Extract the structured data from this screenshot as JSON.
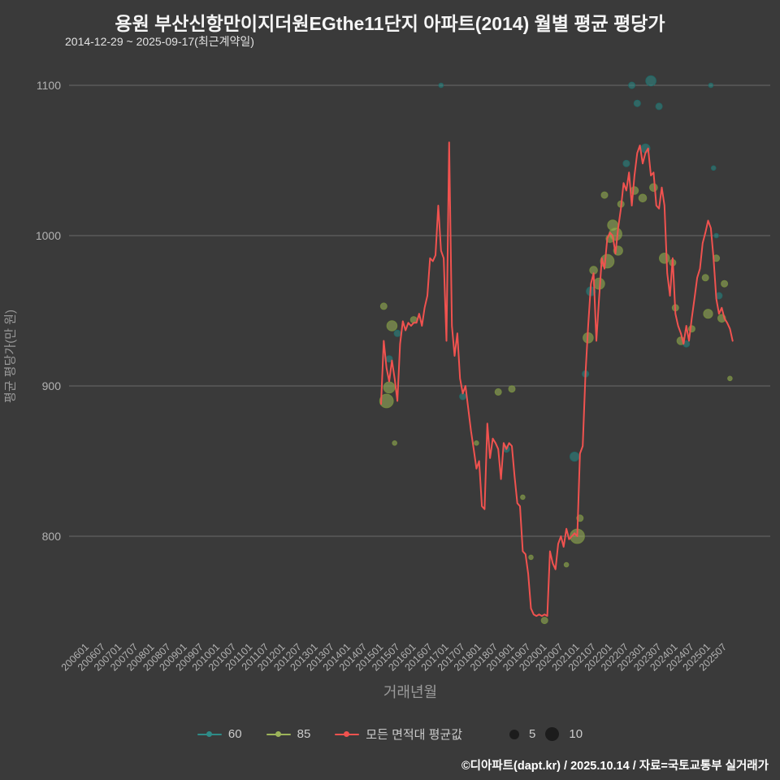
{
  "header": {
    "title": "용원 부산신항만이지더원EGthe11단지 아파트(2014) 월별 평균 평당가",
    "subtitle": "2014-12-29 ~ 2025-09-17(최근계약일)"
  },
  "footer": {
    "credit": "©디아파트(dapt.kr) / 2025.10.14 / 자료=국토교통부 실거래가"
  },
  "legend": {
    "items": [
      {
        "label": "60",
        "color": "#2e8b87"
      },
      {
        "label": "85",
        "color": "#9cb45a"
      },
      {
        "label": "모든 면적대 평균값",
        "color": "#f0524f"
      }
    ],
    "sizes": [
      {
        "label": "5"
      },
      {
        "label": "10"
      }
    ],
    "size_dot_color": "#1c1c1c"
  },
  "chart_data": {
    "type": "line",
    "title": "용원 부산신항만이지더원EGthe11단지 아파트(2014) 월별 평균 평당가",
    "xlabel": "거래년월",
    "ylabel": "평균 평당가(만 원)",
    "ylim": [
      730,
      1110
    ],
    "yticks": [
      800,
      900,
      1000,
      1100
    ],
    "xticks": [
      "200601",
      "200607",
      "200701",
      "200707",
      "200801",
      "200807",
      "200901",
      "200907",
      "201001",
      "201007",
      "201101",
      "201107",
      "201201",
      "201207",
      "201301",
      "201307",
      "201401",
      "201407",
      "201501",
      "201507",
      "201601",
      "201607",
      "201701",
      "201707",
      "201801",
      "201807",
      "201901",
      "201907",
      "202001",
      "202007",
      "202101",
      "202107",
      "202201",
      "202207",
      "202301",
      "202307",
      "202401",
      "202407",
      "202501",
      "202507"
    ],
    "grid": true,
    "legend_position": "bottom",
    "colors": {
      "background": "#3a3a3a",
      "grid": "#6b6b6b",
      "tick": "#b2b2b2"
    },
    "series_colors": {
      "60": {
        "fill": "#2e8b87",
        "stroke": "#1f6b68"
      },
      "85": {
        "fill": "#9cb45a",
        "stroke": "#77913c"
      }
    },
    "line_series": {
      "name": "모든 면적대 평균값",
      "color": "#f0524f",
      "start": "2014-12",
      "values": [
        888,
        930,
        912,
        903,
        917,
        905,
        890,
        928,
        943,
        937,
        942,
        940,
        942,
        942,
        948,
        940,
        952,
        960,
        985,
        983,
        987,
        1020,
        990,
        985,
        930,
        1062,
        940,
        920,
        935,
        905,
        895,
        900,
        885,
        870,
        858,
        845,
        850,
        820,
        818,
        875,
        852,
        865,
        862,
        858,
        838,
        862,
        858,
        862,
        860,
        840,
        822,
        820,
        790,
        788,
        775,
        752,
        748,
        747,
        748,
        747,
        748,
        747,
        790,
        782,
        778,
        795,
        800,
        793,
        805,
        798,
        800,
        802,
        800,
        855,
        860,
        908,
        940,
        968,
        975,
        930,
        958,
        985,
        978,
        998,
        1002,
        1000,
        988,
        1005,
        1018,
        1035,
        1030,
        1042,
        1020,
        1040,
        1055,
        1060,
        1048,
        1055,
        1058,
        1040,
        1042,
        1020,
        1018,
        1032,
        1020,
        975,
        960,
        985,
        948,
        940,
        935,
        928,
        940,
        930,
        945,
        958,
        972,
        978,
        995,
        1002,
        1010,
        1005,
        985,
        958,
        948,
        952,
        945,
        942,
        938,
        930
      ]
    },
    "bubble_series": [
      {
        "name": "60",
        "meaning": "전용 60㎡대 거래"
      },
      {
        "name": "85",
        "meaning": "전용 85㎡대 거래"
      }
    ],
    "size_legend": [
      5,
      10
    ],
    "bubbles": [
      {
        "m": "2015-01",
        "v": 953,
        "s": "85",
        "c": 2
      },
      {
        "m": "2015-02",
        "v": 890,
        "s": "85",
        "c": 9
      },
      {
        "m": "2015-03",
        "v": 899,
        "s": "85",
        "c": 6
      },
      {
        "m": "2015-03",
        "v": 918,
        "s": "60",
        "c": 2
      },
      {
        "m": "2015-04",
        "v": 940,
        "s": "85",
        "c": 5
      },
      {
        "m": "2015-05",
        "v": 862,
        "s": "85",
        "c": 1
      },
      {
        "m": "2015-06",
        "v": 935,
        "s": "60",
        "c": 2
      },
      {
        "m": "2015-12",
        "v": 944,
        "s": "85",
        "c": 2
      },
      {
        "m": "2016-10",
        "v": 1100,
        "s": "60",
        "c": 1
      },
      {
        "m": "2017-06",
        "v": 893,
        "s": "60",
        "c": 2
      },
      {
        "m": "2017-11",
        "v": 862,
        "s": "85",
        "c": 1
      },
      {
        "m": "2018-07",
        "v": 896,
        "s": "85",
        "c": 2
      },
      {
        "m": "2018-10",
        "v": 858,
        "s": "60",
        "c": 2
      },
      {
        "m": "2018-12",
        "v": 898,
        "s": "85",
        "c": 2
      },
      {
        "m": "2019-04",
        "v": 826,
        "s": "85",
        "c": 1
      },
      {
        "m": "2019-07",
        "v": 786,
        "s": "85",
        "c": 1
      },
      {
        "m": "2019-12",
        "v": 744,
        "s": "85",
        "c": 2
      },
      {
        "m": "2020-08",
        "v": 781,
        "s": "85",
        "c": 1
      },
      {
        "m": "2020-11",
        "v": 853,
        "s": "60",
        "c": 4
      },
      {
        "m": "2020-12",
        "v": 800,
        "s": "85",
        "c": 10
      },
      {
        "m": "2021-01",
        "v": 812,
        "s": "85",
        "c": 2
      },
      {
        "m": "2021-03",
        "v": 908,
        "s": "60",
        "c": 2
      },
      {
        "m": "2021-04",
        "v": 932,
        "s": "85",
        "c": 5
      },
      {
        "m": "2021-05",
        "v": 963,
        "s": "60",
        "c": 4
      },
      {
        "m": "2021-06",
        "v": 977,
        "s": "85",
        "c": 3
      },
      {
        "m": "2021-08",
        "v": 968,
        "s": "85",
        "c": 6
      },
      {
        "m": "2021-10",
        "v": 1027,
        "s": "85",
        "c": 2
      },
      {
        "m": "2021-11",
        "v": 983,
        "s": "85",
        "c": 9
      },
      {
        "m": "2021-12",
        "v": 998,
        "s": "85",
        "c": 3
      },
      {
        "m": "2022-01",
        "v": 1007,
        "s": "85",
        "c": 5
      },
      {
        "m": "2022-02",
        "v": 1001,
        "s": "85",
        "c": 8
      },
      {
        "m": "2022-03",
        "v": 990,
        "s": "85",
        "c": 4
      },
      {
        "m": "2022-04",
        "v": 1021,
        "s": "85",
        "c": 2
      },
      {
        "m": "2022-06",
        "v": 1048,
        "s": "60",
        "c": 2
      },
      {
        "m": "2022-08",
        "v": 1100,
        "s": "60",
        "c": 2
      },
      {
        "m": "2022-09",
        "v": 1030,
        "s": "85",
        "c": 3
      },
      {
        "m": "2022-10",
        "v": 1088,
        "s": "60",
        "c": 2
      },
      {
        "m": "2022-12",
        "v": 1025,
        "s": "85",
        "c": 3
      },
      {
        "m": "2023-01",
        "v": 1058,
        "s": "60",
        "c": 4
      },
      {
        "m": "2023-03",
        "v": 1103,
        "s": "60",
        "c": 5
      },
      {
        "m": "2023-04",
        "v": 1032,
        "s": "85",
        "c": 3
      },
      {
        "m": "2023-06",
        "v": 1086,
        "s": "60",
        "c": 2
      },
      {
        "m": "2023-08",
        "v": 985,
        "s": "85",
        "c": 5
      },
      {
        "m": "2023-11",
        "v": 982,
        "s": "85",
        "c": 2
      },
      {
        "m": "2023-12",
        "v": 952,
        "s": "85",
        "c": 2
      },
      {
        "m": "2024-02",
        "v": 930,
        "s": "85",
        "c": 3
      },
      {
        "m": "2024-04",
        "v": 928,
        "s": "60",
        "c": 2
      },
      {
        "m": "2024-06",
        "v": 938,
        "s": "85",
        "c": 2
      },
      {
        "m": "2024-11",
        "v": 972,
        "s": "85",
        "c": 2
      },
      {
        "m": "2024-12",
        "v": 948,
        "s": "85",
        "c": 4
      },
      {
        "m": "2025-01",
        "v": 1100,
        "s": "60",
        "c": 1
      },
      {
        "m": "2025-02",
        "v": 1045,
        "s": "60",
        "c": 1
      },
      {
        "m": "2025-03",
        "v": 1000,
        "s": "60",
        "c": 1
      },
      {
        "m": "2025-03",
        "v": 985,
        "s": "85",
        "c": 2
      },
      {
        "m": "2025-04",
        "v": 960,
        "s": "60",
        "c": 2
      },
      {
        "m": "2025-05",
        "v": 945,
        "s": "85",
        "c": 3
      },
      {
        "m": "2025-06",
        "v": 968,
        "s": "85",
        "c": 2
      },
      {
        "m": "2025-08",
        "v": 905,
        "s": "85",
        "c": 1
      }
    ]
  }
}
